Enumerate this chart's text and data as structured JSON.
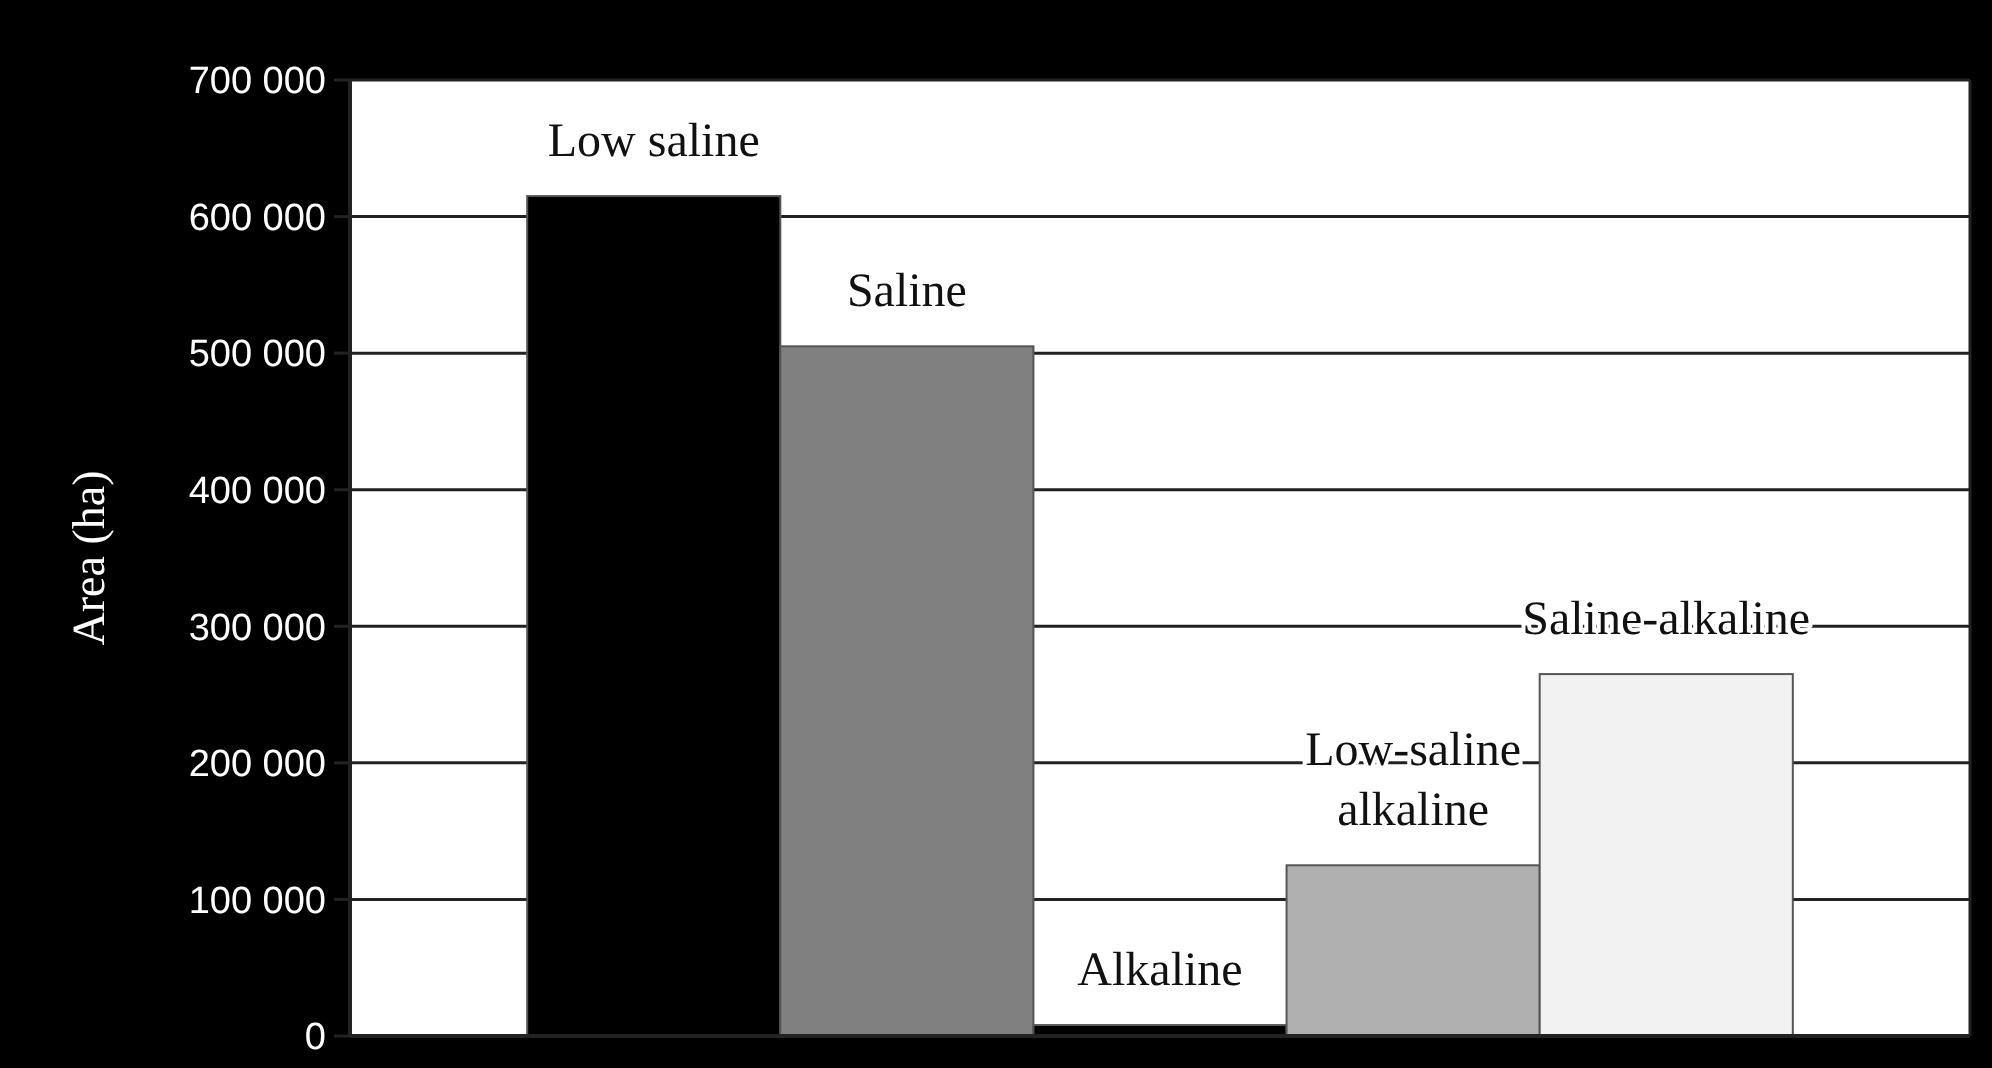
{
  "chart_data": {
    "type": "bar",
    "ylabel": "Area (ha)",
    "categories": [
      "Low saline",
      "Saline",
      "Alkaline",
      "Low-saline\nalkaline",
      "Saline-alkaline"
    ],
    "values": [
      615000,
      505000,
      8000,
      125000,
      265000
    ],
    "colors": [
      "#000000",
      "#808080",
      "#000000",
      "#b0b0b0",
      "#f2f2f2"
    ],
    "ylim": [
      0,
      700000
    ],
    "yticks": [
      {
        "value": 0,
        "label": "0"
      },
      {
        "value": 100000,
        "label": "100 000"
      },
      {
        "value": 200000,
        "label": "200 000"
      },
      {
        "value": 300000,
        "label": "300 000"
      },
      {
        "value": 400000,
        "label": "400 000"
      },
      {
        "value": 500000,
        "label": "500 000"
      },
      {
        "value": 600000,
        "label": "600 000"
      },
      {
        "value": 700000,
        "label": "700 000"
      }
    ],
    "grid": "y"
  }
}
